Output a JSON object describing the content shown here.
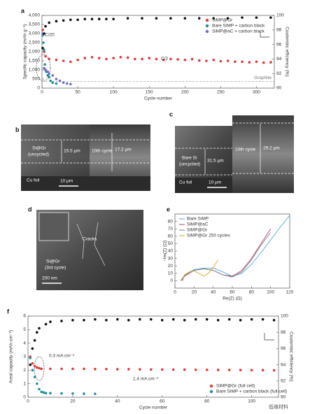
{
  "chart_data": [
    {
      "type": "scatter",
      "label": "a",
      "x_label": "Cycle number",
      "y_label": "Specific capacity (mAh g⁻¹)",
      "y2_label": "Coulombic efficiency (%)",
      "xlim": [
        0,
        325
      ],
      "xticks": [
        0,
        50,
        100,
        150,
        200,
        250,
        300
      ],
      "ylim": [
        0,
        4000
      ],
      "yticks": [
        0,
        500,
        {
          "value": 1000,
          "label": "1,000"
        },
        {
          "value": 1500,
          "label": "1,500"
        },
        {
          "value": 2000,
          "label": "2,000"
        },
        {
          "value": 2500,
          "label": "2,500"
        },
        {
          "value": 3000,
          "label": "3,000"
        },
        {
          "value": 3500,
          "label": "3,500"
        },
        {
          "value": 4000,
          "label": "4,000"
        }
      ],
      "y2lim": [
        90,
        100
      ],
      "y2ticks": [
        90,
        92,
        94,
        96,
        98,
        100
      ],
      "legend": "upper right",
      "series": [
        {
          "name": "SiMP@Gr",
          "color": "#e03a3a",
          "x": [
            1,
            3,
            5,
            10,
            20,
            30,
            40,
            50,
            60,
            70,
            80,
            90,
            100,
            110,
            120,
            130,
            140,
            150,
            160,
            170,
            180,
            190,
            200,
            210,
            220,
            230,
            240,
            250,
            260,
            270,
            280,
            290,
            300,
            310,
            320
          ],
          "values": [
            3200,
            2000,
            1750,
            1600,
            1550,
            1500,
            1450,
            1550,
            1650,
            1700,
            1650,
            1600,
            1650,
            1700,
            1680,
            1600,
            1600,
            1650,
            1600,
            1550,
            1600,
            1580,
            1550,
            1600,
            1520,
            1500,
            1550,
            1480,
            1500,
            1450,
            1450,
            1420,
            1450,
            1400,
            1420
          ]
        },
        {
          "name": "Bare SiMP + carbon black",
          "color": "#1f8f9e",
          "x": [
            1,
            2,
            3,
            4,
            5,
            6,
            8,
            10,
            12,
            15,
            20
          ],
          "values": [
            2900,
            2500,
            2100,
            1300,
            1000,
            900,
            700,
            600,
            400,
            300,
            250
          ]
        },
        {
          "name": "SiMP@aC + carbon black",
          "color": "#6d6ec8",
          "x": [
            1,
            3,
            5,
            8,
            10,
            15,
            20,
            25,
            30,
            35,
            40
          ],
          "values": [
            3000,
            1100,
            1000,
            900,
            800,
            700,
            500,
            400,
            300,
            250,
            220
          ]
        },
        {
          "name": null,
          "color": "#111111",
          "axis": "y2",
          "x": [
            1,
            3,
            5,
            10,
            20,
            30,
            40,
            50,
            60,
            70,
            80,
            90,
            100,
            120,
            140,
            160,
            180,
            200,
            220,
            240,
            260,
            280,
            300,
            320
          ],
          "values": [
            95.5,
            97.5,
            98.5,
            99,
            99.2,
            99.3,
            99.4,
            99.4,
            99.5,
            99.5,
            99.5,
            99.5,
            99.5,
            99.6,
            99.6,
            99.6,
            99.6,
            99.6,
            99.6,
            99.6,
            99.6,
            99.7,
            99.7,
            99.7
          ]
        }
      ],
      "reference_line": {
        "label": "Graphite",
        "value": 372
      },
      "annotations": [
        "C/20",
        "C/2"
      ]
    },
    {
      "type": "line",
      "label": "e",
      "x_label": "Re(Z) (Ω)",
      "y_label": "−Im(Z) (Ω)",
      "xlim": [
        0,
        120
      ],
      "xticks": [
        0,
        20,
        40,
        60,
        80,
        100,
        120
      ],
      "ylim": [
        -10,
        90
      ],
      "yticks": [
        0,
        10,
        20,
        30,
        40,
        50,
        60,
        70,
        80
      ],
      "legend": "upper left",
      "series": [
        {
          "name": "Bare SiMP",
          "color": "#4aa8d8",
          "x": [
            8,
            10,
            20,
            30,
            40,
            50,
            60,
            70,
            80,
            90,
            100,
            110,
            120
          ],
          "values": [
            0,
            8,
            15,
            17,
            17,
            12,
            6,
            10,
            22,
            38,
            55,
            72,
            88
          ]
        },
        {
          "name": "SiMP@aC",
          "color": "#b0457a",
          "x": [
            7,
            10,
            20,
            30,
            40,
            50,
            60,
            70,
            80,
            90,
            100
          ],
          "values": [
            0,
            6,
            14,
            16,
            14,
            8,
            6,
            14,
            30,
            50,
            70
          ]
        },
        {
          "name": "SiMP@Gr",
          "color": "#808080",
          "x": [
            6,
            10,
            20,
            30,
            40,
            50,
            60,
            70,
            80,
            90,
            100
          ],
          "values": [
            0,
            7,
            14,
            16,
            14,
            8,
            5,
            12,
            28,
            48,
            65
          ]
        },
        {
          "name": "SiMP@Gr 250 cycles",
          "color": "#e0a020",
          "x": [
            8,
            10,
            15,
            20,
            25,
            30,
            35,
            40,
            45
          ],
          "values": [
            0,
            8,
            12,
            13,
            10,
            6,
            10,
            18,
            28
          ]
        }
      ]
    },
    {
      "type": "scatter",
      "label": "f",
      "x_label": "Cycle number",
      "y_label": "Areal capacity (mAh cm⁻²)",
      "y2_label": "Coulombic efficiency (%)",
      "xlim": [
        0,
        112
      ],
      "xticks": [
        0,
        20,
        40,
        60,
        80,
        100
      ],
      "ylim": [
        0,
        6
      ],
      "yticks": [
        0,
        1,
        2,
        3,
        4,
        5,
        6
      ],
      "y2lim": [
        90,
        100
      ],
      "y2ticks": [
        90,
        92,
        94,
        96,
        98,
        100
      ],
      "legend": "lower right",
      "series": [
        {
          "name": "SiMP@Gr (full cell)",
          "color": "#e03a3a",
          "x": [
            1,
            2,
            3,
            4,
            5,
            6,
            10,
            15,
            20,
            25,
            30,
            35,
            40,
            45,
            50,
            55,
            60,
            65,
            70,
            75,
            80,
            85,
            90,
            95,
            100,
            105,
            110
          ],
          "values": [
            3.0,
            2.5,
            2.3,
            2.2,
            2.15,
            2.1,
            2.1,
            2.1,
            2.1,
            2.1,
            2.08,
            2.08,
            2.07,
            2.07,
            2.06,
            2.05,
            2.05,
            2.04,
            2.04,
            2.03,
            2.03,
            2.02,
            2.02,
            2.01,
            2.0,
            2.0,
            1.99
          ]
        },
        {
          "name": "Bare SiMP + carbon black (full cell)",
          "color": "#1f8f9e",
          "x": [
            1,
            2,
            3,
            4,
            5,
            6,
            7,
            8,
            10,
            15,
            20,
            25,
            30
          ],
          "values": [
            2.9,
            2.0,
            1.5,
            1.0,
            0.6,
            0.4,
            0.35,
            0.3,
            0.3,
            0.28,
            0.27,
            0.26,
            0.25
          ]
        },
        {
          "name": null,
          "color": "#111111",
          "axis": "y2",
          "x": [
            1,
            2,
            3,
            4,
            5,
            8,
            10,
            15,
            20,
            25,
            30,
            35,
            40,
            45,
            50,
            55,
            60,
            65,
            70,
            75,
            80,
            85,
            90,
            95,
            100,
            105,
            110
          ],
          "values": [
            94,
            96,
            97,
            98,
            98.5,
            99,
            99.3,
            99.4,
            99.5,
            99.5,
            99.6,
            99.5,
            99.6,
            99.5,
            99.6,
            99.6,
            99.5,
            99.6,
            99.5,
            99.6,
            99.6,
            99.5,
            99.6,
            99.5,
            99.6,
            99.6,
            99.5
          ]
        }
      ],
      "annotations": [
        "0.3 mA cm⁻²",
        "1.4 mA cm⁻²"
      ]
    }
  ],
  "panels": [
    {
      "label": "b",
      "texts": [
        "Si@Gr",
        "(uncycled)",
        "15.5 μm",
        "10th cycle",
        "17.2 μm",
        "Cu foil",
        "10 μm"
      ]
    },
    {
      "label": "c",
      "texts": [
        "Bare Si",
        "(uncycled)",
        "31.5 μm",
        "10th cycle",
        "29.2 μm",
        "Cu foil",
        "10 μm"
      ]
    },
    {
      "label": "d",
      "texts": [
        "Cracks",
        "Si@Gr",
        "(3rd cycle)",
        "200 nm"
      ]
    }
  ],
  "watermark": "低维材料"
}
